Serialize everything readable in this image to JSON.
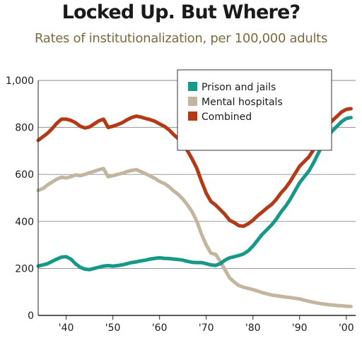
{
  "chart_data": {
    "type": "line",
    "title": "Locked Up. But Where?",
    "subtitle": "Rates of institutionalization, per 100,000 adults",
    "xlabel": "",
    "ylabel": "",
    "xlim": [
      1934,
      2002
    ],
    "ylim": [
      0,
      1000
    ],
    "y_ticks": [
      0,
      200,
      400,
      600,
      800,
      1000
    ],
    "y_tick_labels": [
      "0",
      "200",
      "400",
      "600",
      "800",
      "1,000"
    ],
    "x_ticks": [
      1940,
      1950,
      1960,
      1970,
      1980,
      1990,
      2000
    ],
    "x_tick_labels": [
      "'40",
      "'50",
      "'60",
      "'70",
      "'80",
      "'90",
      "'00"
    ],
    "grid": "horizontal",
    "legend_position": "top-right",
    "series": [
      {
        "name": "Prison and jails",
        "color": "#17998a",
        "points": [
          [
            1934,
            210
          ],
          [
            1935,
            215
          ],
          [
            1936,
            220
          ],
          [
            1937,
            230
          ],
          [
            1938,
            240
          ],
          [
            1939,
            248
          ],
          [
            1940,
            250
          ],
          [
            1941,
            240
          ],
          [
            1942,
            220
          ],
          [
            1943,
            205
          ],
          [
            1944,
            197
          ],
          [
            1945,
            195
          ],
          [
            1946,
            200
          ],
          [
            1947,
            205
          ],
          [
            1948,
            210
          ],
          [
            1949,
            212
          ],
          [
            1950,
            210
          ],
          [
            1951,
            212
          ],
          [
            1952,
            215
          ],
          [
            1953,
            220
          ],
          [
            1954,
            225
          ],
          [
            1955,
            228
          ],
          [
            1956,
            232
          ],
          [
            1957,
            235
          ],
          [
            1958,
            240
          ],
          [
            1959,
            243
          ],
          [
            1960,
            245
          ],
          [
            1961,
            243
          ],
          [
            1962,
            242
          ],
          [
            1963,
            240
          ],
          [
            1964,
            238
          ],
          [
            1965,
            235
          ],
          [
            1966,
            230
          ],
          [
            1967,
            226
          ],
          [
            1968,
            225
          ],
          [
            1969,
            225
          ],
          [
            1970,
            220
          ],
          [
            1971,
            215
          ],
          [
            1972,
            213
          ],
          [
            1973,
            220
          ],
          [
            1974,
            235
          ],
          [
            1975,
            245
          ],
          [
            1976,
            250
          ],
          [
            1977,
            255
          ],
          [
            1978,
            262
          ],
          [
            1979,
            275
          ],
          [
            1980,
            295
          ],
          [
            1981,
            320
          ],
          [
            1982,
            345
          ],
          [
            1983,
            365
          ],
          [
            1984,
            385
          ],
          [
            1985,
            410
          ],
          [
            1986,
            440
          ],
          [
            1987,
            465
          ],
          [
            1988,
            495
          ],
          [
            1989,
            530
          ],
          [
            1990,
            565
          ],
          [
            1991,
            590
          ],
          [
            1992,
            615
          ],
          [
            1993,
            650
          ],
          [
            1994,
            690
          ],
          [
            1995,
            730
          ],
          [
            1996,
            760
          ],
          [
            1997,
            785
          ],
          [
            1998,
            805
          ],
          [
            1999,
            825
          ],
          [
            2000,
            838
          ],
          [
            2001,
            842
          ]
        ]
      },
      {
        "name": "Mental hospitals",
        "color": "#c3b59e",
        "points": [
          [
            1934,
            532
          ],
          [
            1935,
            540
          ],
          [
            1936,
            555
          ],
          [
            1937,
            568
          ],
          [
            1938,
            580
          ],
          [
            1939,
            588
          ],
          [
            1940,
            585
          ],
          [
            1941,
            590
          ],
          [
            1942,
            598
          ],
          [
            1943,
            595
          ],
          [
            1944,
            600
          ],
          [
            1945,
            607
          ],
          [
            1946,
            613
          ],
          [
            1947,
            620
          ],
          [
            1948,
            625
          ],
          [
            1949,
            590
          ],
          [
            1950,
            595
          ],
          [
            1951,
            600
          ],
          [
            1952,
            605
          ],
          [
            1953,
            612
          ],
          [
            1954,
            617
          ],
          [
            1955,
            620
          ],
          [
            1956,
            612
          ],
          [
            1957,
            603
          ],
          [
            1958,
            593
          ],
          [
            1959,
            583
          ],
          [
            1960,
            570
          ],
          [
            1961,
            562
          ],
          [
            1962,
            548
          ],
          [
            1963,
            530
          ],
          [
            1964,
            515
          ],
          [
            1965,
            495
          ],
          [
            1966,
            470
          ],
          [
            1967,
            440
          ],
          [
            1968,
            400
          ],
          [
            1969,
            345
          ],
          [
            1970,
            300
          ],
          [
            1971,
            265
          ],
          [
            1972,
            260
          ],
          [
            1973,
            230
          ],
          [
            1974,
            195
          ],
          [
            1975,
            160
          ],
          [
            1976,
            142
          ],
          [
            1977,
            127
          ],
          [
            1978,
            120
          ],
          [
            1979,
            115
          ],
          [
            1980,
            110
          ],
          [
            1981,
            104
          ],
          [
            1982,
            97
          ],
          [
            1983,
            92
          ],
          [
            1984,
            87
          ],
          [
            1985,
            84
          ],
          [
            1986,
            81
          ],
          [
            1987,
            78
          ],
          [
            1988,
            76
          ],
          [
            1989,
            73
          ],
          [
            1990,
            70
          ],
          [
            1991,
            65
          ],
          [
            1992,
            60
          ],
          [
            1993,
            56
          ],
          [
            1994,
            52
          ],
          [
            1995,
            49
          ],
          [
            1996,
            46
          ],
          [
            1997,
            44
          ],
          [
            1998,
            42
          ],
          [
            1999,
            41
          ],
          [
            2000,
            39
          ],
          [
            2001,
            38
          ]
        ]
      },
      {
        "name": "Combined",
        "color": "#b33a16",
        "points": [
          [
            1934,
            745
          ],
          [
            1935,
            760
          ],
          [
            1936,
            775
          ],
          [
            1937,
            795
          ],
          [
            1938,
            818
          ],
          [
            1939,
            835
          ],
          [
            1940,
            835
          ],
          [
            1941,
            830
          ],
          [
            1942,
            820
          ],
          [
            1943,
            805
          ],
          [
            1944,
            798
          ],
          [
            1945,
            802
          ],
          [
            1946,
            815
          ],
          [
            1947,
            828
          ],
          [
            1948,
            835
          ],
          [
            1949,
            800
          ],
          [
            1950,
            805
          ],
          [
            1951,
            812
          ],
          [
            1952,
            820
          ],
          [
            1953,
            832
          ],
          [
            1954,
            842
          ],
          [
            1955,
            848
          ],
          [
            1956,
            844
          ],
          [
            1957,
            838
          ],
          [
            1958,
            833
          ],
          [
            1959,
            826
          ],
          [
            1960,
            815
          ],
          [
            1961,
            805
          ],
          [
            1962,
            790
          ],
          [
            1963,
            770
          ],
          [
            1964,
            752
          ],
          [
            1965,
            730
          ],
          [
            1966,
            700
          ],
          [
            1967,
            665
          ],
          [
            1968,
            625
          ],
          [
            1969,
            570
          ],
          [
            1970,
            520
          ],
          [
            1971,
            485
          ],
          [
            1972,
            470
          ],
          [
            1973,
            450
          ],
          [
            1974,
            430
          ],
          [
            1975,
            405
          ],
          [
            1976,
            395
          ],
          [
            1977,
            382
          ],
          [
            1978,
            380
          ],
          [
            1979,
            390
          ],
          [
            1980,
            405
          ],
          [
            1981,
            424
          ],
          [
            1982,
            440
          ],
          [
            1983,
            457
          ],
          [
            1984,
            472
          ],
          [
            1985,
            494
          ],
          [
            1986,
            521
          ],
          [
            1987,
            543
          ],
          [
            1988,
            571
          ],
          [
            1989,
            603
          ],
          [
            1990,
            635
          ],
          [
            1991,
            655
          ],
          [
            1992,
            675
          ],
          [
            1993,
            706
          ],
          [
            1994,
            742
          ],
          [
            1995,
            779
          ],
          [
            1996,
            806
          ],
          [
            1997,
            829
          ],
          [
            1998,
            847
          ],
          [
            1999,
            866
          ],
          [
            2000,
            877
          ],
          [
            2001,
            880
          ]
        ]
      }
    ]
  }
}
